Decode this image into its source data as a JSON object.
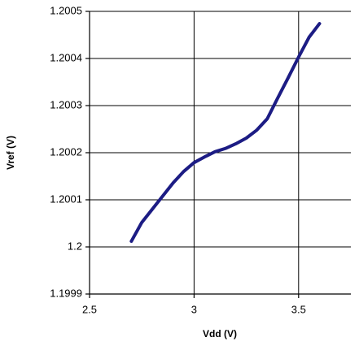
{
  "chart_data": {
    "type": "line",
    "x_label": "Vdd (V)",
    "y_label": "Vref (V)",
    "x": [
      2.7,
      2.75,
      2.8,
      2.85,
      2.9,
      2.95,
      3.0,
      3.05,
      3.1,
      3.15,
      3.2,
      3.25,
      3.3,
      3.35,
      3.4,
      3.45,
      3.5,
      3.55,
      3.6
    ],
    "series": [
      {
        "color": "#1c1c84",
        "values": [
          1.200012,
          1.200052,
          1.20008,
          1.200108,
          1.200136,
          1.20016,
          1.200179,
          1.200191,
          1.200202,
          1.200209,
          1.200219,
          1.200231,
          1.200248,
          1.200272,
          1.200316,
          1.200359,
          1.200403,
          1.200445,
          1.200474
        ]
      }
    ],
    "xlim": [
      2.5,
      3.75
    ],
    "xticks": [
      2.5,
      3,
      3.5
    ],
    "ylim": [
      1.1999,
      1.2005
    ],
    "yticks": [
      1.1999,
      1.2,
      1.2001,
      1.2002,
      1.2003,
      1.2004,
      1.2005
    ],
    "grid": true
  }
}
